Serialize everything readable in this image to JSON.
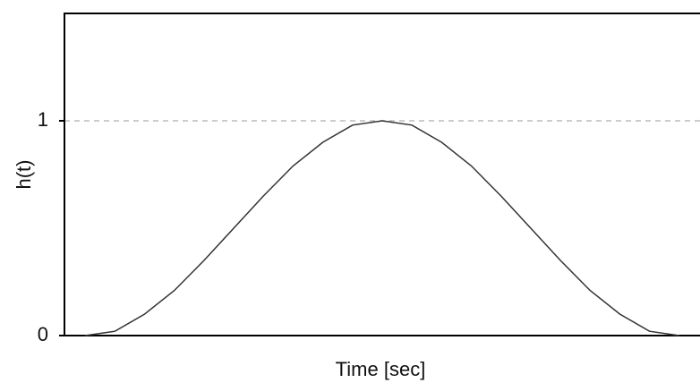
{
  "chart_data": {
    "type": "line",
    "xlabel": "Time [sec]",
    "ylabel": "h(t)",
    "x": [
      0,
      0.05,
      0.1,
      0.15,
      0.2,
      0.25,
      0.3,
      0.35,
      0.4,
      0.45,
      0.5,
      0.55,
      0.6,
      0.65,
      0.7,
      0.75,
      0.8,
      0.85,
      0.9,
      0.95,
      1
    ],
    "series": [
      {
        "color": "#333333",
        "values": [
          0,
          0.02,
          0.1,
          0.21,
          0.35,
          0.5,
          0.65,
          0.79,
          0.9,
          0.98,
          1,
          0.98,
          0.9,
          0.79,
          0.65,
          0.5,
          0.35,
          0.21,
          0.1,
          0.02,
          0
        ]
      }
    ],
    "xlim": [
      -0.035,
      1.035
    ],
    "ylim": [
      0,
      1.5
    ],
    "yticks": [
      0,
      1
    ],
    "hline": 1
  }
}
